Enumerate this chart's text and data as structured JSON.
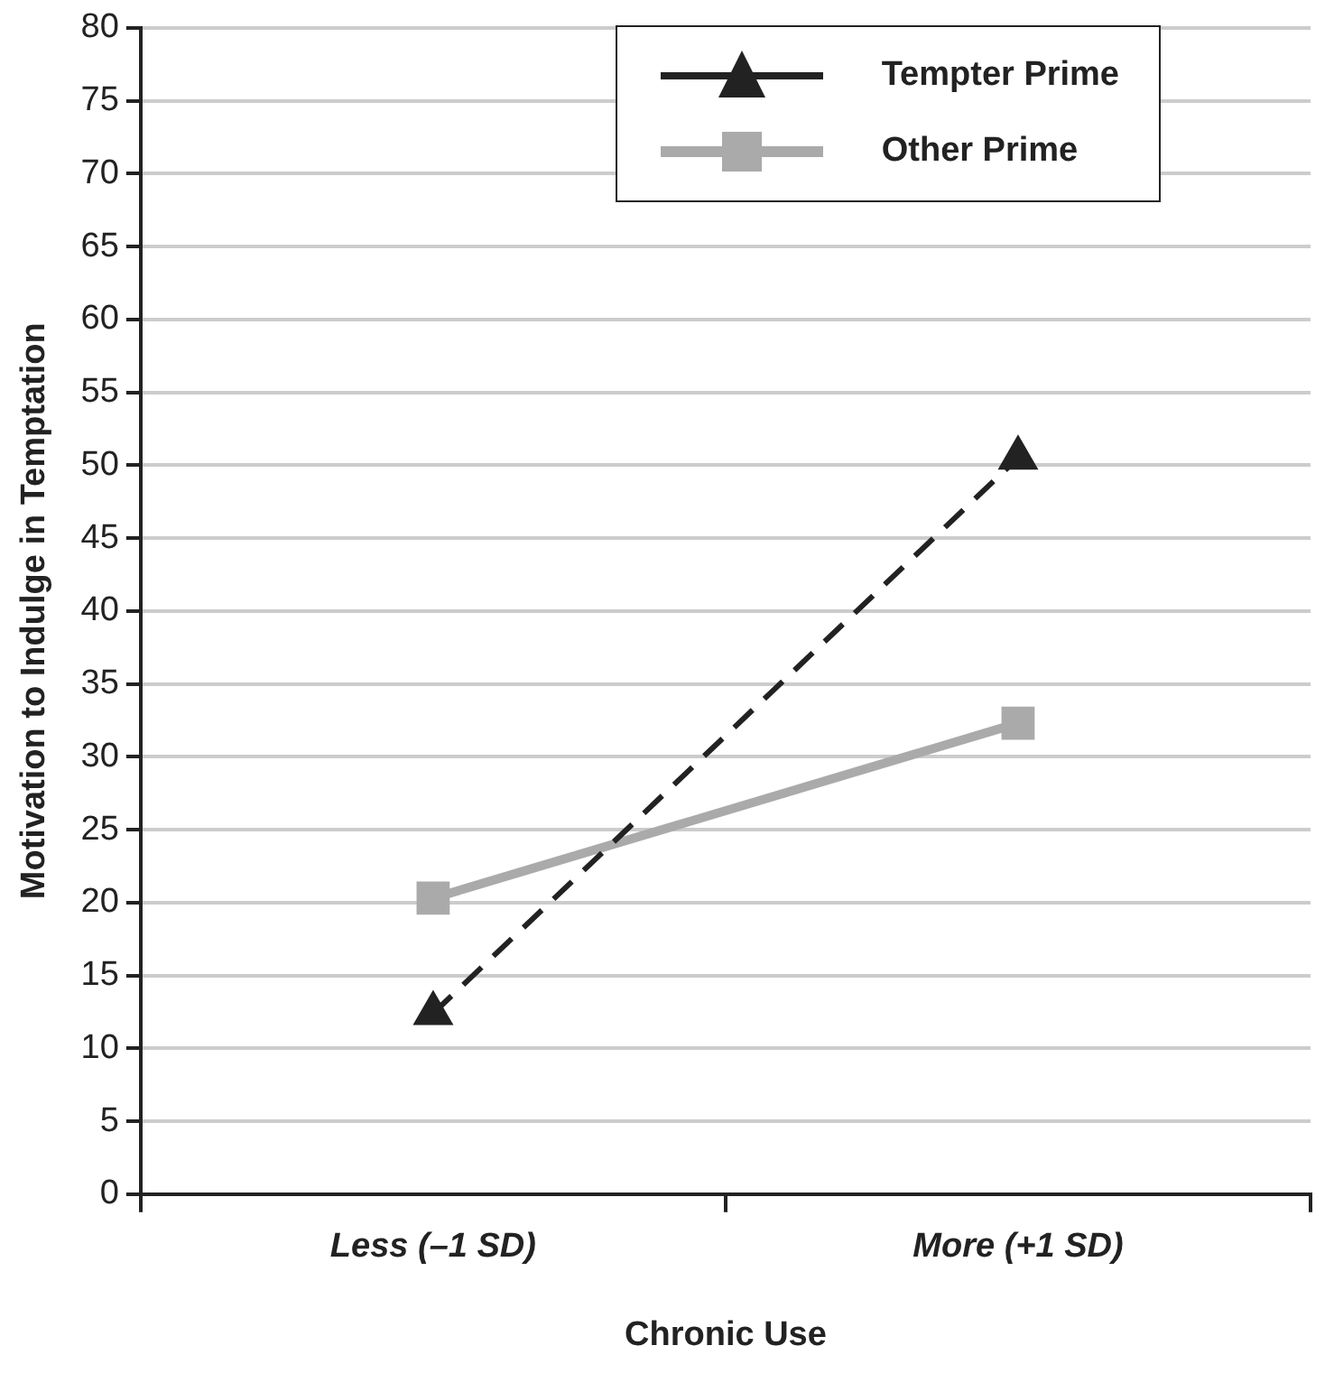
{
  "chart_data": {
    "type": "line",
    "xlabel": "Chronic Use",
    "ylabel": "Motivation to Indulge in Temptation",
    "categories": [
      "Less (–1 SD)",
      "More (+1 SD)"
    ],
    "series": [
      {
        "name": "Tempter Prime",
        "color": "#222222",
        "values": [
          12.4,
          50.5
        ],
        "marker": "triangle",
        "line_style": "dashed"
      },
      {
        "name": "Other Prime",
        "color": "#aaaaaa",
        "values": [
          20.3,
          32.3
        ],
        "marker": "square",
        "line_style": "solid"
      }
    ],
    "ylim": [
      0,
      80
    ],
    "yticks": [
      0,
      5,
      10,
      15,
      20,
      25,
      30,
      35,
      40,
      45,
      50,
      55,
      60,
      65,
      70,
      75,
      80
    ],
    "grid": "y",
    "legend": "top right"
  }
}
